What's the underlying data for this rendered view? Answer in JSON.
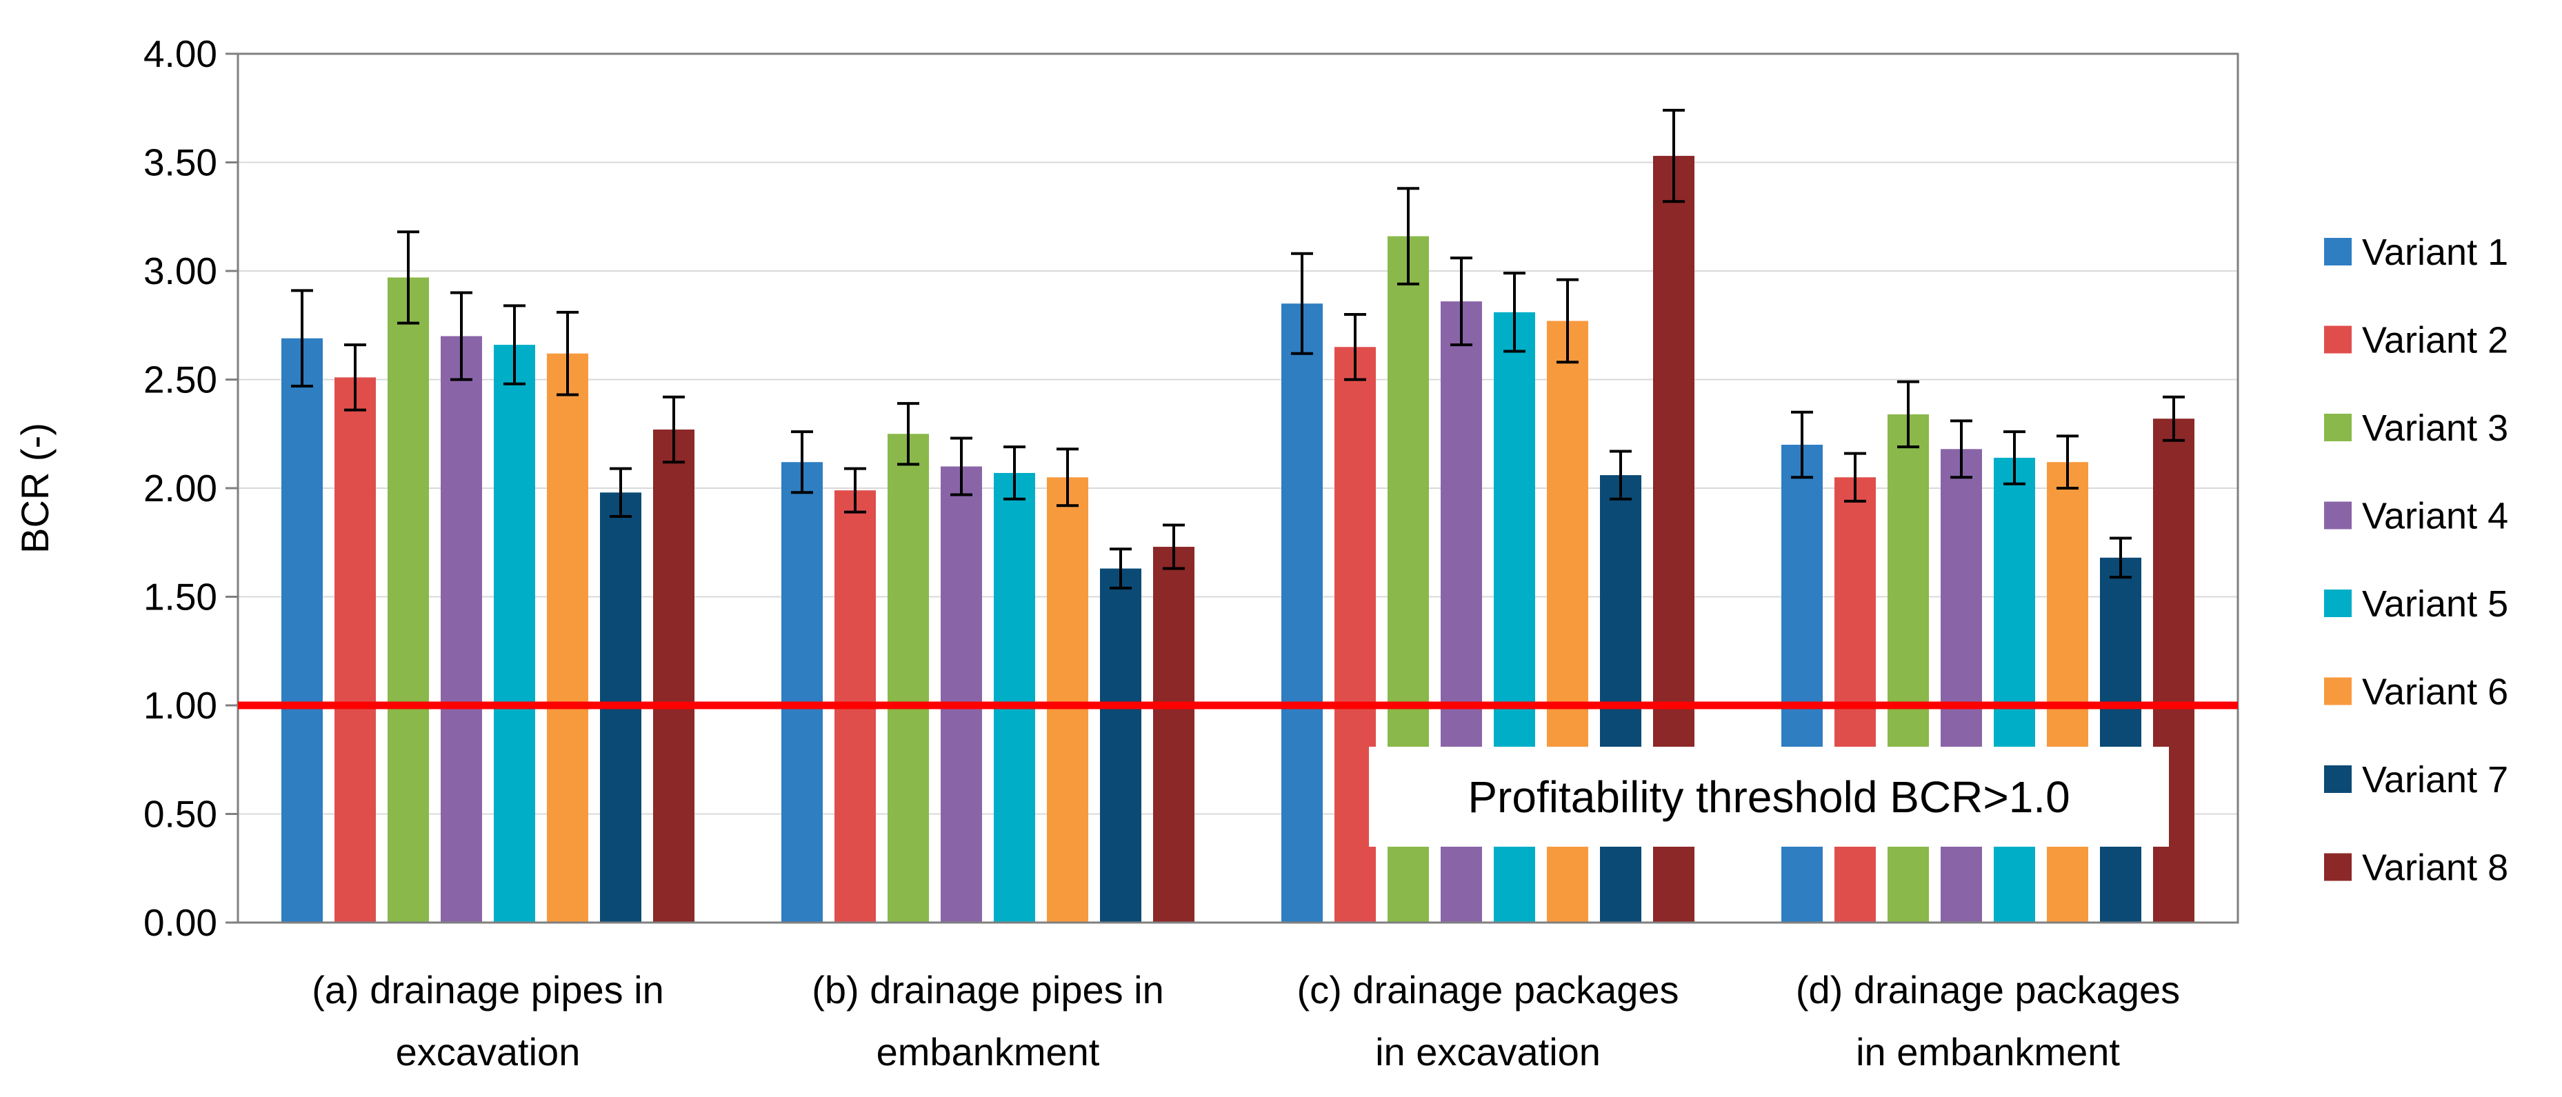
{
  "chart_data": {
    "type": "bar",
    "title": "",
    "xlabel": "",
    "ylabel": "BCR (-)",
    "ylim": [
      0,
      4
    ],
    "ytick_step": 0.5,
    "ytick_labels": [
      "0.00",
      "0.50",
      "1.00",
      "1.50",
      "2.00",
      "2.50",
      "3.00",
      "3.50",
      "4.00"
    ],
    "grid": true,
    "legend_position": "right",
    "categories": [
      [
        "(a) drainage pipes in",
        "excavation"
      ],
      [
        "(b) drainage pipes in",
        "embankment"
      ],
      [
        "(c) drainage packages",
        "in excavation"
      ],
      [
        "(d) drainage packages",
        "in embankment"
      ]
    ],
    "series": [
      {
        "name": "Variant 1",
        "color": "#2E7EC1",
        "values": [
          2.69,
          2.12,
          2.85,
          2.2
        ],
        "errors": [
          0.22,
          0.14,
          0.23,
          0.15
        ]
      },
      {
        "name": "Variant 2",
        "color": "#E04E4C",
        "values": [
          2.51,
          1.99,
          2.65,
          2.05
        ],
        "errors": [
          0.15,
          0.1,
          0.15,
          0.11
        ]
      },
      {
        "name": "Variant 3",
        "color": "#8AB84A",
        "values": [
          2.97,
          2.25,
          3.16,
          2.34
        ],
        "errors": [
          0.21,
          0.14,
          0.22,
          0.15
        ]
      },
      {
        "name": "Variant 4",
        "color": "#8965A8",
        "values": [
          2.7,
          2.1,
          2.86,
          2.18
        ],
        "errors": [
          0.2,
          0.13,
          0.2,
          0.13
        ]
      },
      {
        "name": "Variant 5",
        "color": "#00AEC7",
        "values": [
          2.66,
          2.07,
          2.81,
          2.14
        ],
        "errors": [
          0.18,
          0.12,
          0.18,
          0.12
        ]
      },
      {
        "name": "Variant 6",
        "color": "#F79A3E",
        "values": [
          2.62,
          2.05,
          2.77,
          2.12
        ],
        "errors": [
          0.19,
          0.13,
          0.19,
          0.12
        ]
      },
      {
        "name": "Variant 7",
        "color": "#0B4A75",
        "values": [
          1.98,
          1.63,
          2.06,
          1.68
        ],
        "errors": [
          0.11,
          0.09,
          0.11,
          0.09
        ]
      },
      {
        "name": "Variant 8",
        "color": "#8C2828",
        "values": [
          2.27,
          1.73,
          3.53,
          2.32
        ],
        "errors": [
          0.15,
          0.1,
          0.21,
          0.1
        ]
      }
    ],
    "threshold": {
      "value": 1.0,
      "color": "#FF0000",
      "label": "Profitability threshold BCR>1.0"
    }
  }
}
